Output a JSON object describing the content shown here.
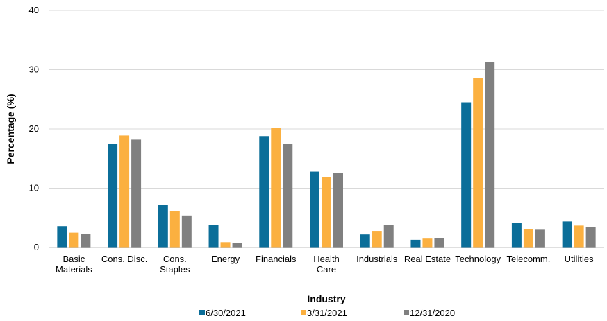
{
  "chart_data": {
    "type": "bar",
    "title": "",
    "xlabel": "Industry",
    "ylabel": "Percentage (%)",
    "ylim": [
      0,
      40
    ],
    "yticks": [
      0,
      10,
      20,
      30,
      40
    ],
    "grid": "horizontal",
    "legend_position": "bottom",
    "categories": [
      [
        "Basic",
        "Materials"
      ],
      [
        "Cons. Disc."
      ],
      [
        "Cons.",
        "Staples"
      ],
      [
        "Energy"
      ],
      [
        "Financials"
      ],
      [
        "Health",
        "Care"
      ],
      [
        "Industrials"
      ],
      [
        "Real Estate"
      ],
      [
        "Technology"
      ],
      [
        "Telecomm."
      ],
      [
        "Utilities"
      ]
    ],
    "series": [
      {
        "name": "6/30/2021",
        "color": "#0b6e99",
        "values": [
          3.6,
          17.5,
          7.2,
          3.8,
          18.8,
          12.8,
          2.2,
          1.3,
          24.5,
          4.2,
          4.4
        ]
      },
      {
        "name": "3/31/2021",
        "color": "#fbb040",
        "values": [
          2.5,
          18.9,
          6.1,
          0.9,
          20.2,
          11.9,
          2.8,
          1.5,
          28.6,
          3.1,
          3.7
        ]
      },
      {
        "name": "12/31/2020",
        "color": "#808080",
        "values": [
          2.3,
          18.2,
          5.4,
          0.8,
          17.5,
          12.6,
          3.8,
          1.6,
          31.3,
          3.0,
          3.5
        ]
      }
    ]
  }
}
